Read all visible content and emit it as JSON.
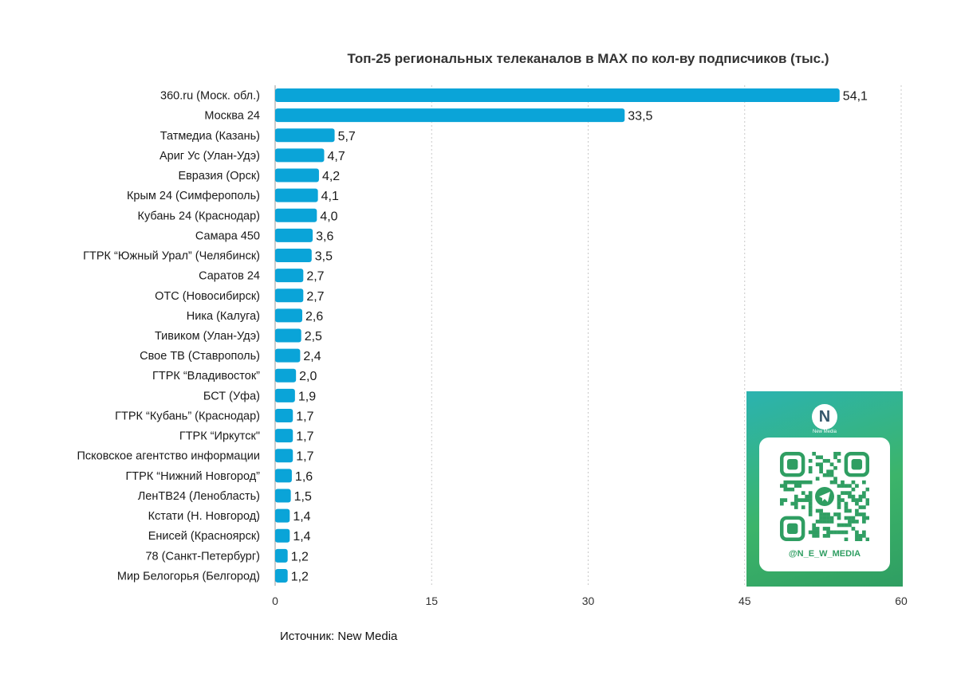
{
  "chart_data": {
    "type": "bar",
    "orientation": "horizontal",
    "title": "Топ-25 региональных телеканалов в МАХ по кол-ву подписчиков (тыс.)",
    "categories": [
      "360.ru (Моск. обл.)",
      "Москва 24",
      "Татмедиа (Казань)",
      "Ариг Ус (Улан-Удэ)",
      "Евразия (Орск)",
      "Крым 24 (Симферополь)",
      "Кубань 24 (Краснодар)",
      "Самара 450",
      "ГТРК “Южный Урал” (Челябинск)",
      "Саратов 24",
      "ОТС (Новосибирск)",
      "Ника (Калуга)",
      "Тивиком (Улан-Удэ)",
      "Свое ТВ (Ставрополь)",
      "ГТРК “Владивосток”",
      "БСТ (Уфа)",
      "ГТРК “Кубань” (Краснодар)",
      "ГТРК “Иркутск\"",
      "Псковское агентство информации",
      "ГТРК “Нижний Новгород”",
      "ЛенТВ24 (Ленобласть)",
      "Кстати (Н. Новгород)",
      "Енисей (Красноярск)",
      "78 (Санкт-Петербург)",
      "Мир Белогорья (Белгород)"
    ],
    "values": [
      54.1,
      33.5,
      5.7,
      4.7,
      4.2,
      4.1,
      4.0,
      3.6,
      3.5,
      2.7,
      2.7,
      2.6,
      2.5,
      2.4,
      2.0,
      1.9,
      1.7,
      1.7,
      1.7,
      1.6,
      1.5,
      1.4,
      1.4,
      1.2,
      1.2
    ],
    "value_labels": [
      "54,1",
      "33,5",
      "5,7",
      "4,7",
      "4,2",
      "4,1",
      "4,0",
      "3,6",
      "3,5",
      "2,7",
      "2,7",
      "2,6",
      "2,5",
      "2,4",
      "2,0",
      "1,9",
      "1,7",
      "1,7",
      "1,7",
      "1,6",
      "1,5",
      "1,4",
      "1,4",
      "1,2",
      "1,2"
    ],
    "xlim": [
      0,
      60
    ],
    "xticks": [
      "0",
      "15",
      "30",
      "45",
      "60"
    ],
    "grid": "vertical-dotted",
    "bar_color": "#0aa4d8",
    "source": "Источник: New Media"
  },
  "qr_card": {
    "logo_letter": "N",
    "logo_caption": "New Media",
    "handle": "@N_E_W_MEDIA",
    "icon": "telegram-icon",
    "accent": "#2f9e62"
  }
}
